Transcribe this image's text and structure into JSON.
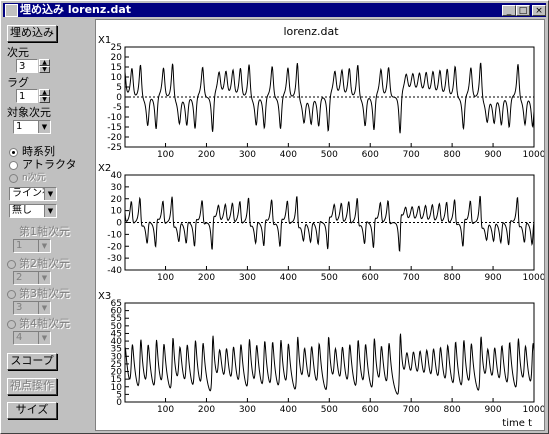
{
  "window": {
    "title": "埋め込み lorenz.dat"
  },
  "controls": {
    "embed_button": "埋め込み",
    "dimension_label": "次元",
    "dimension_value": "3",
    "lag_label": "ラグ",
    "lag_value": "1",
    "target_dim_label": "対象次元",
    "target_dim_value": "1",
    "radio_timeseries": "時系列",
    "radio_attractor": "アトラクタ",
    "radio_ndim": "n次元",
    "line_select": "ライン有",
    "mark_select": "無し",
    "axis1_label": "第1軸次元",
    "axis1_value": "1",
    "axis2_label": "第2軸次元",
    "axis2_value": "2",
    "axis3_label": "第3軸次元",
    "axis3_value": "3",
    "axis4_label": "第4軸次元",
    "axis4_value": "4",
    "scope_button": "スコープ",
    "viewpoint_button": "視点操作",
    "size_button": "サイズ"
  },
  "chart_data": {
    "title": "lorenz.dat",
    "x_label": "time  t",
    "xlim": [
      1,
      1000
    ],
    "x_ticks": [
      100,
      200,
      300,
      400,
      500,
      600,
      700,
      800,
      900,
      1000
    ],
    "type": "line",
    "panels": [
      {
        "name": "X1",
        "ylim": [
          -25,
          25
        ],
        "y_ticks": [
          -25,
          -20,
          -15,
          -10,
          -5,
          0,
          5,
          10,
          15,
          20,
          25
        ],
        "zero_line": 0
      },
      {
        "name": "X2",
        "ylim": [
          -40,
          40
        ],
        "y_ticks": [
          -40,
          -30,
          -20,
          -10,
          0,
          10,
          20,
          30,
          40
        ],
        "zero_line": 0
      },
      {
        "name": "X3",
        "ylim": [
          0,
          65
        ],
        "y_ticks": [
          0,
          5,
          10,
          15,
          20,
          25,
          30,
          35,
          40,
          45,
          50,
          55,
          60,
          65
        ],
        "zero_line": null
      }
    ]
  }
}
